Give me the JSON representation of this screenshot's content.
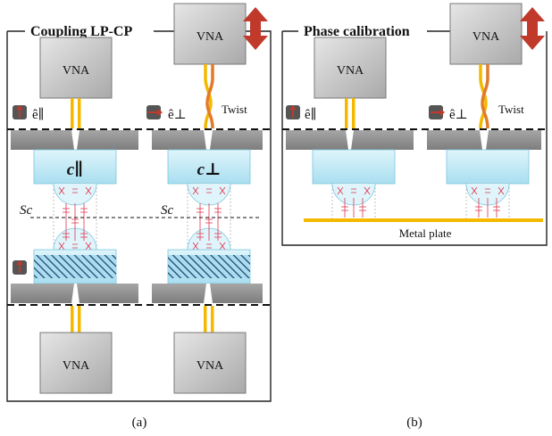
{
  "panel_a": {
    "title": "Coupling LP-CP",
    "vna_label": "VNA",
    "e_par": "ê∥",
    "e_perp": "ê⊥",
    "twist": "Twist",
    "c_par": "c∥",
    "c_perp": "c⊥",
    "sc": "Sc",
    "caption": "(a)"
  },
  "panel_b": {
    "title": "Phase calibration",
    "vna_label": "VNA",
    "e_par": "ê∥",
    "e_perp": "ê⊥",
    "twist": "Twist",
    "metal_plate": "Metal plate",
    "caption": "(b)"
  },
  "colors": {
    "vna_fill": "#c8c8c8",
    "cable": "#f5b800",
    "twist_cable": "#e07b2a",
    "flange": "#8c8c8c",
    "lens": "#c6ecf7",
    "beam": "#e0324b",
    "arrow_red": "#c0392b",
    "metal_plate": "#f5b800"
  }
}
